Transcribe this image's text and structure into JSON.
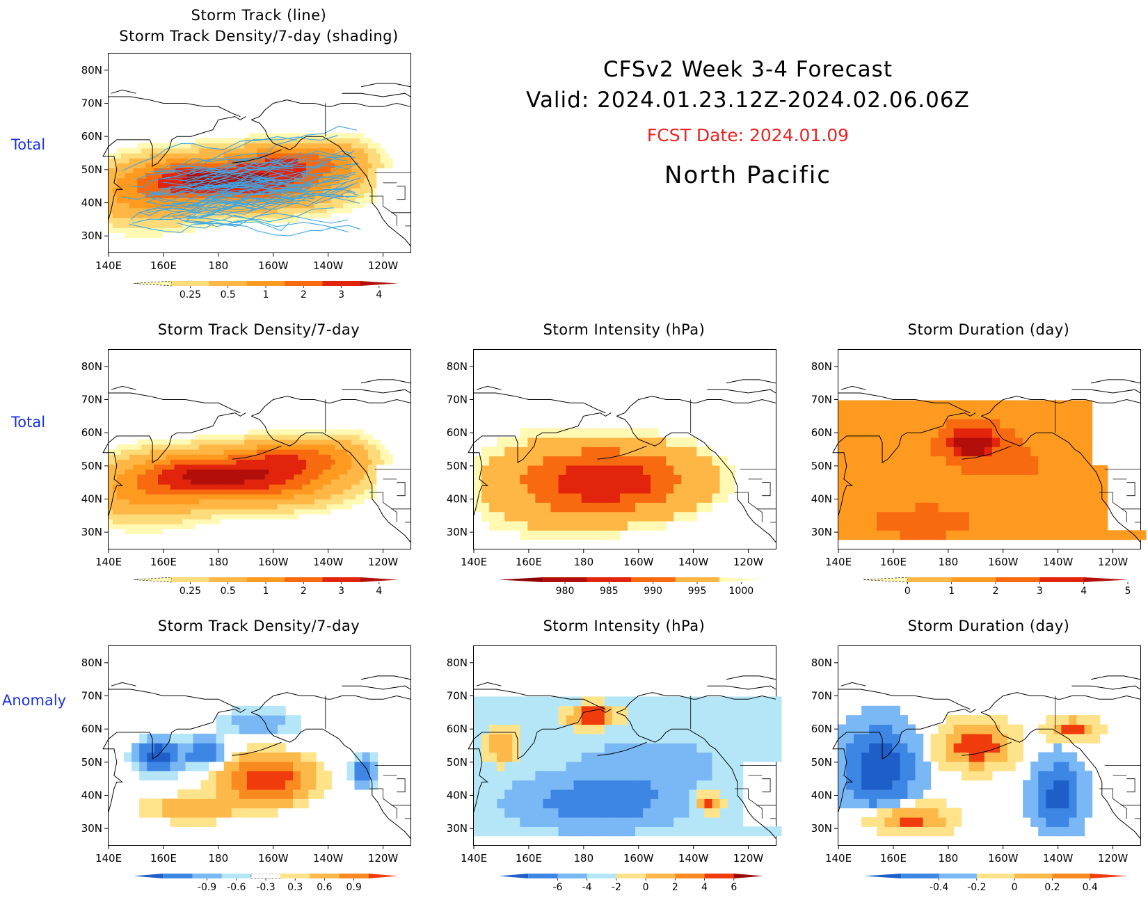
{
  "header": {
    "line1": "CFSv2  Week  3-4  Forecast",
    "line2": "Valid:  2024.01.23.12Z-2024.02.06.06Z",
    "fcst": "FCST Date: 2024.01.09",
    "region": "North  Pacific"
  },
  "row_labels": [
    "Total",
    "Total",
    "Anomaly"
  ],
  "axes": {
    "lat_ticks": [
      "80N",
      "70N",
      "60N",
      "50N",
      "40N",
      "30N"
    ],
    "lon_ticks": [
      "140E",
      "160E",
      "180",
      "160W",
      "140W",
      "120W"
    ]
  },
  "colors": {
    "seq_yellow_red": [
      "#fff9b3",
      "#fedb7a",
      "#feb645",
      "#fd9a1f",
      "#f86a10",
      "#e3240d",
      "#b30f0a",
      "#8c0000"
    ],
    "diverging": [
      "#1e5ec9",
      "#3d86e3",
      "#7ab7f5",
      "#b5e6f7",
      "#ffffff",
      "#ffe38a",
      "#fdb84a",
      "#f98a20",
      "#f03c0c",
      "#9b0a0a"
    ],
    "track_line": "#3aa7e6"
  },
  "panels": [
    {
      "id": "tl",
      "title": [
        "Storm Track (line)",
        "Storm Track Density/7-day (shading)"
      ],
      "field": "density",
      "tracks": true,
      "colorbar": {
        "labels": [
          "0.25",
          "0.5",
          "1",
          "2",
          "3",
          "4"
        ],
        "colors": [
          "#fff9b3",
          "#fedb7a",
          "#feb645",
          "#fd9a1f",
          "#f86a10",
          "#e3240d",
          "#b30f0a"
        ]
      }
    },
    {
      "id": "m1",
      "title": [
        "Storm Track Density/7-day"
      ],
      "field": "density",
      "colorbar": {
        "labels": [
          "0.25",
          "0.5",
          "1",
          "2",
          "3",
          "4"
        ],
        "colors": [
          "#fff9b3",
          "#fedb7a",
          "#feb645",
          "#fd9a1f",
          "#f86a10",
          "#e3240d",
          "#b30f0a"
        ]
      }
    },
    {
      "id": "m2",
      "title": [
        "Storm Intensity (hPa)"
      ],
      "field": "intensity",
      "colorbar": {
        "labels": [
          "980",
          "985",
          "990",
          "995",
          "1000"
        ],
        "colors": [
          "#8c0000",
          "#b30f0a",
          "#e3240d",
          "#f86a10",
          "#feb645",
          "#fff9b3"
        ]
      }
    },
    {
      "id": "m3",
      "title": [
        "Storm Duration (day)"
      ],
      "field": "duration",
      "colorbar": {
        "labels": [
          "0",
          "1",
          "2",
          "3",
          "4",
          "5"
        ],
        "colors": [
          "#fff9b3",
          "#feb645",
          "#fd9a1f",
          "#f86a10",
          "#e3240d",
          "#b30f0a"
        ]
      }
    },
    {
      "id": "b1",
      "title": [
        "Storm Track Density/7-day"
      ],
      "field": "anom_density",
      "colorbar": {
        "labels": [
          "-0.9",
          "-0.6",
          "-0.3",
          "0.3",
          "0.6",
          "0.9"
        ],
        "colors": [
          "#1e5ec9",
          "#3d86e3",
          "#7ab7f5",
          "#b5e6f7",
          "#ffffff",
          "#ffe38a",
          "#fdb84a",
          "#f98a20",
          "#f03c0c"
        ]
      }
    },
    {
      "id": "b2",
      "title": [
        "Storm Intensity (hPa)"
      ],
      "field": "anom_intensity",
      "colorbar": {
        "labels": [
          "-6",
          "-4",
          "-2",
          "0",
          "2",
          "4",
          "6"
        ],
        "colors": [
          "#1e5ec9",
          "#3d86e3",
          "#7ab7f5",
          "#b5e6f7",
          "#ffe38a",
          "#fdb84a",
          "#f98a20",
          "#f03c0c",
          "#9b0a0a"
        ]
      }
    },
    {
      "id": "b3",
      "title": [
        "Storm Duration (day)"
      ],
      "field": "anom_duration",
      "colorbar": {
        "labels": [
          "-0.4",
          "-0.2",
          "0",
          "0.2",
          "0.4"
        ],
        "colors": [
          "#1e5ec9",
          "#3d86e3",
          "#7ab7f5",
          "#ffe38a",
          "#fdb84a",
          "#f98a20",
          "#f03c0c"
        ]
      }
    }
  ]
}
